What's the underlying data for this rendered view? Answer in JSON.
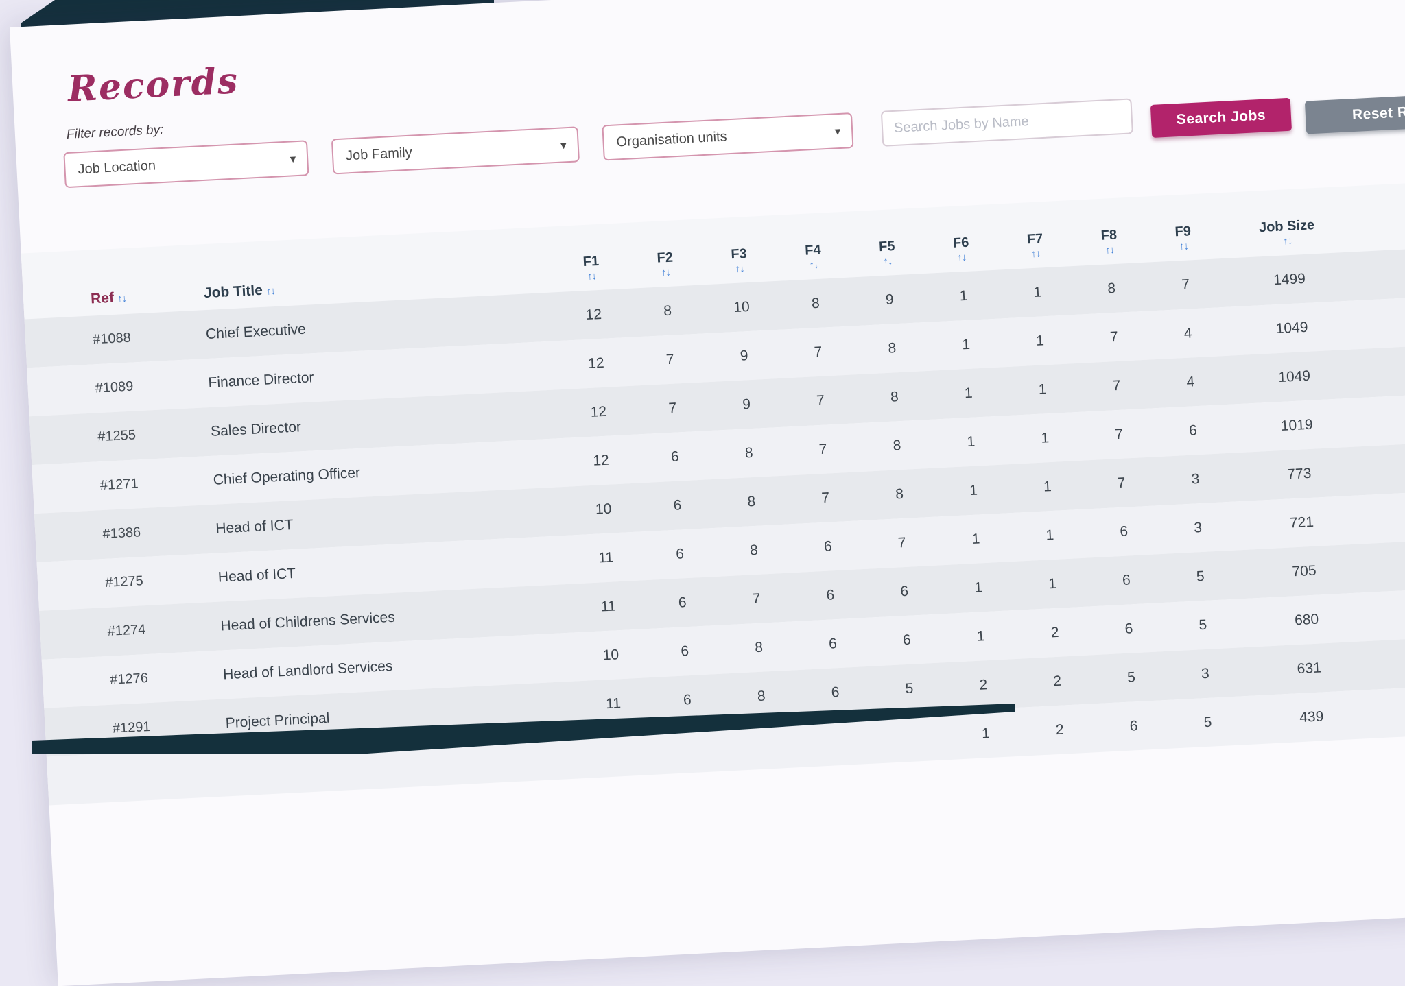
{
  "title": "Records",
  "filter_section": {
    "label": "Filter records by:",
    "job_location": "Job Location",
    "job_family": "Job Family",
    "organisation_units": "Organisation units",
    "search_placeholder": "Search Jobs by Name",
    "search_button": "Search Jobs",
    "reset_button": "Reset Re"
  },
  "table": {
    "ref_header": "Ref",
    "job_title_header": "Job Title",
    "f_columns": [
      "F1",
      "F2",
      "F3",
      "F4",
      "F5",
      "F6",
      "F7",
      "F8",
      "F9"
    ],
    "job_size_header": "Job Size",
    "rows": [
      {
        "ref": "#1088",
        "title": "Chief Executive",
        "f_values": [
          "12",
          "8",
          "10",
          "8",
          "9",
          "1",
          "1",
          "8",
          "7"
        ],
        "job_size": "1499"
      },
      {
        "ref": "#1089",
        "title": "Finance Director",
        "f_values": [
          "12",
          "7",
          "9",
          "7",
          "8",
          "1",
          "1",
          "7",
          "4"
        ],
        "job_size": "1049"
      },
      {
        "ref": "#1255",
        "title": "Sales Director",
        "f_values": [
          "12",
          "7",
          "9",
          "7",
          "8",
          "1",
          "1",
          "7",
          "4"
        ],
        "job_size": "1049"
      },
      {
        "ref": "#1271",
        "title": "Chief Operating Officer",
        "f_values": [
          "12",
          "6",
          "8",
          "7",
          "8",
          "1",
          "1",
          "7",
          "6"
        ],
        "job_size": "1019"
      },
      {
        "ref": "#1386",
        "title": "Head of ICT",
        "f_values": [
          "10",
          "6",
          "8",
          "7",
          "8",
          "1",
          "1",
          "7",
          "3"
        ],
        "job_size": "773"
      },
      {
        "ref": "#1275",
        "title": "Head of ICT",
        "f_values": [
          "11",
          "6",
          "8",
          "6",
          "7",
          "1",
          "1",
          "6",
          "3"
        ],
        "job_size": "721"
      },
      {
        "ref": "#1274",
        "title": "Head of Childrens Services",
        "f_values": [
          "11",
          "6",
          "7",
          "6",
          "6",
          "1",
          "1",
          "6",
          "5"
        ],
        "job_size": "705"
      },
      {
        "ref": "#1276",
        "title": "Head of Landlord Services",
        "f_values": [
          "10",
          "6",
          "8",
          "6",
          "6",
          "1",
          "2",
          "6",
          "5"
        ],
        "job_size": "680"
      },
      {
        "ref": "#1291",
        "title": "Project Principal",
        "f_values": [
          "11",
          "6",
          "8",
          "6",
          "5",
          "2",
          "2",
          "5",
          "3"
        ],
        "job_size": "631"
      },
      {
        "ref": "",
        "title": "",
        "f_values": [
          "",
          "",
          "",
          "",
          "",
          "1",
          "2",
          "6",
          "5"
        ],
        "job_size": "439"
      }
    ]
  },
  "icons": {
    "sort": "↑↓",
    "chevron_down": "▾"
  },
  "colors": {
    "accent_magenta": "#b2236b",
    "reset_gray": "#7b8490",
    "title_magenta": "#9c2d62",
    "sort_arrow_blue": "#4b87d9",
    "backdrop_teal": "#14303c",
    "background_lavender": "#eae8f4"
  }
}
